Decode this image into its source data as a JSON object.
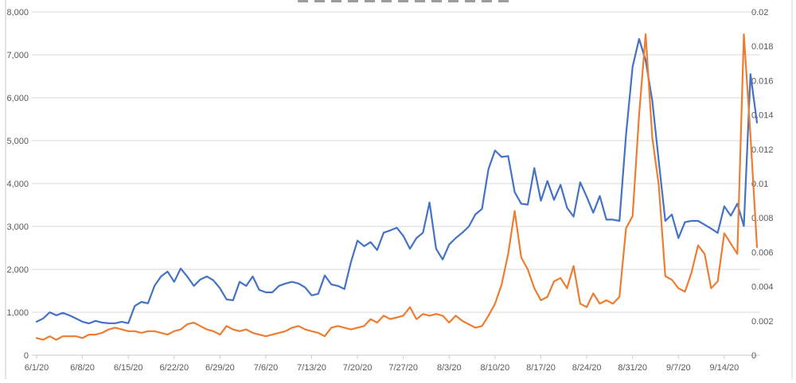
{
  "chart": {
    "background": "#ffffff",
    "gridline_color": "#d9d9d9",
    "axisline_color": "#c9c9c9",
    "label_color": "#595959",
    "title_clipped_at_top": true
  },
  "chart_data": {
    "type": "line",
    "title": "",
    "xlabel": "",
    "ylabel": "",
    "grid": true,
    "legend": "none",
    "x_axis": {
      "num_points": 111,
      "points_per_tick": 7,
      "tick_labels": [
        "6/1/20",
        "6/8/20",
        "6/15/20",
        "6/22/20",
        "6/29/20",
        "7/6/20",
        "7/13/20",
        "7/20/20",
        "7/27/20",
        "8/3/20",
        "8/10/20",
        "8/17/20",
        "8/24/20",
        "8/31/20",
        "9/7/20",
        "9/14/20"
      ]
    },
    "left_axis": {
      "min": 0,
      "max": 8000,
      "tick_labels": [
        "8,000",
        "7,000",
        "6,000",
        "5,000",
        "4,000",
        "3,000",
        "2,000",
        "1,000",
        "0"
      ]
    },
    "right_axis": {
      "min": 0,
      "max": 0.02,
      "tick_labels": [
        "0.02",
        "0.018",
        "0.016",
        "0.014",
        "0.012",
        "0.01",
        "0.008",
        "0.006",
        "0.004",
        "0.002",
        "0"
      ]
    },
    "series": [
      {
        "id": "series-blue-left-axis",
        "axis": "left",
        "color": "#4472C4",
        "values": [
          780,
          855,
          1000,
          930,
          985,
          930,
          855,
          780,
          740,
          800,
          760,
          745,
          745,
          780,
          745,
          1150,
          1240,
          1210,
          1615,
          1835,
          1950,
          1710,
          2020,
          1835,
          1615,
          1765,
          1835,
          1745,
          1560,
          1300,
          1280,
          1710,
          1615,
          1835,
          1520,
          1465,
          1465,
          1615,
          1670,
          1710,
          1670,
          1580,
          1395,
          1430,
          1860,
          1650,
          1615,
          1540,
          2170,
          2670,
          2540,
          2635,
          2450,
          2855,
          2910,
          2970,
          2780,
          2480,
          2730,
          2855,
          3560,
          2480,
          2230,
          2580,
          2730,
          2855,
          3000,
          3280,
          3410,
          4340,
          4770,
          4620,
          4640,
          3800,
          3530,
          3510,
          4360,
          3600,
          4060,
          3620,
          3970,
          3435,
          3230,
          4030,
          3690,
          3320,
          3710,
          3160,
          3160,
          3130,
          5140,
          6720,
          7370,
          6870,
          5940,
          4520,
          3130,
          3280,
          2730,
          3100,
          3130,
          3130,
          3040,
          2950,
          2850,
          3470,
          3250,
          3530,
          3010,
          6550,
          5420
        ]
      },
      {
        "id": "series-orange-right-axis",
        "axis": "right",
        "color": "#ED7D31",
        "values": [
          0.001,
          0.0009,
          0.0011,
          0.0009,
          0.0011,
          0.0011,
          0.0011,
          0.001,
          0.0012,
          0.0012,
          0.0013,
          0.0015,
          0.0016,
          0.0015,
          0.0014,
          0.0014,
          0.0013,
          0.0014,
          0.0014,
          0.0013,
          0.0012,
          0.0014,
          0.0015,
          0.0018,
          0.0019,
          0.0017,
          0.0015,
          0.0014,
          0.0012,
          0.0017,
          0.0015,
          0.0014,
          0.0015,
          0.0013,
          0.0012,
          0.0011,
          0.0012,
          0.0013,
          0.0014,
          0.0016,
          0.0017,
          0.0015,
          0.0014,
          0.0013,
          0.0011,
          0.0016,
          0.0017,
          0.0016,
          0.0015,
          0.0016,
          0.0017,
          0.0021,
          0.0019,
          0.0023,
          0.0021,
          0.0022,
          0.0023,
          0.0028,
          0.0021,
          0.0024,
          0.0023,
          0.0024,
          0.0023,
          0.0019,
          0.0023,
          0.002,
          0.0018,
          0.0016,
          0.0017,
          0.0023,
          0.003,
          0.0041,
          0.0059,
          0.0084,
          0.0057,
          0.005,
          0.0039,
          0.0032,
          0.0034,
          0.0043,
          0.0045,
          0.0039,
          0.0052,
          0.003,
          0.0028,
          0.0036,
          0.003,
          0.0032,
          0.003,
          0.0034,
          0.0074,
          0.0081,
          0.014,
          0.0187,
          0.0127,
          0.0099,
          0.0046,
          0.0044,
          0.0039,
          0.0037,
          0.0048,
          0.0064,
          0.0059,
          0.0039,
          0.0043,
          0.0071,
          0.0065,
          0.0059,
          0.0187,
          0.0128,
          0.0063
        ]
      }
    ]
  }
}
